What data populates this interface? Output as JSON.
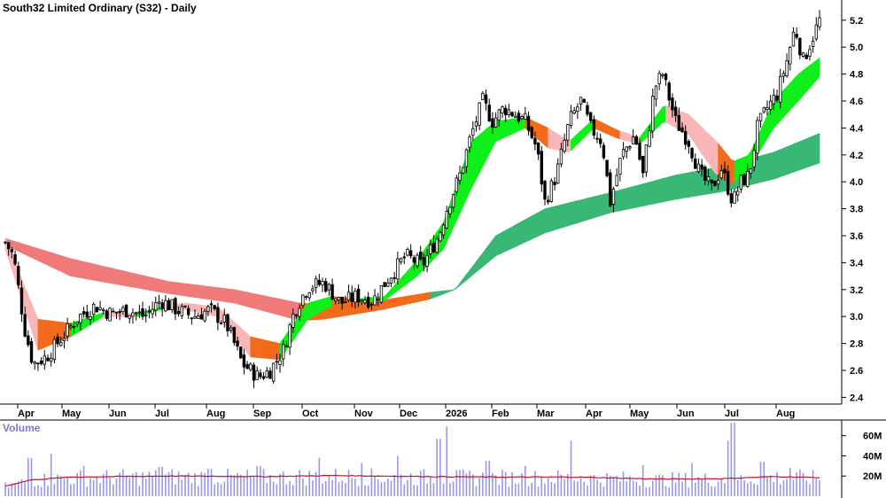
{
  "chart_data": [
    {
      "type": "candlestick",
      "title": "South32 Limited Ordinary (S32) - Daily",
      "y_axis_side": "right",
      "ylim": [
        2.35,
        5.35
      ],
      "y_ticks": [
        2.4,
        2.6,
        2.8,
        3.0,
        3.2,
        3.4,
        3.6,
        3.8,
        4.0,
        4.2,
        4.4,
        4.6,
        4.8,
        5.0,
        5.2
      ],
      "y_tick_labels": [
        "2.4",
        "2.6",
        "2.8",
        "3.0",
        "3.2",
        "3.4",
        "3.6",
        "3.8",
        "4.0",
        "4.2",
        "4.4",
        "4.6",
        "4.8",
        "5.0",
        "5.2"
      ],
      "x_labels": [
        "Apr",
        "May",
        "Jun",
        "Jul",
        "Aug",
        "Sep",
        "Oct",
        "Nov",
        "Dec",
        "2026",
        "Feb",
        "Mar",
        "Apr",
        "May",
        "Jun",
        "Jul",
        "Aug"
      ],
      "grid": false,
      "price_path": [
        {
          "d": 0,
          "close": 3.55
        },
        {
          "d": 5,
          "close": 3.45
        },
        {
          "d": 12,
          "close": 2.9
        },
        {
          "d": 17,
          "close": 2.65
        },
        {
          "d": 25,
          "close": 2.7
        },
        {
          "d": 35,
          "close": 2.85
        },
        {
          "d": 45,
          "close": 3.0
        },
        {
          "d": 55,
          "close": 3.08
        },
        {
          "d": 65,
          "close": 3.02
        },
        {
          "d": 75,
          "close": 3.05
        },
        {
          "d": 85,
          "close": 3.0
        },
        {
          "d": 95,
          "close": 3.12
        },
        {
          "d": 105,
          "close": 3.05
        },
        {
          "d": 115,
          "close": 3.0
        },
        {
          "d": 125,
          "close": 3.05
        },
        {
          "d": 135,
          "close": 2.95
        },
        {
          "d": 145,
          "close": 2.65
        },
        {
          "d": 155,
          "close": 2.55
        },
        {
          "d": 162,
          "close": 2.6
        },
        {
          "d": 170,
          "close": 2.75
        },
        {
          "d": 177,
          "close": 3.05
        },
        {
          "d": 185,
          "close": 3.22
        },
        {
          "d": 195,
          "close": 3.25
        },
        {
          "d": 205,
          "close": 3.1
        },
        {
          "d": 215,
          "close": 3.15
        },
        {
          "d": 225,
          "close": 3.12
        },
        {
          "d": 235,
          "close": 3.3
        },
        {
          "d": 245,
          "close": 3.45
        },
        {
          "d": 255,
          "close": 3.38
        },
        {
          "d": 265,
          "close": 3.6
        },
        {
          "d": 270,
          "close": 3.8
        },
        {
          "d": 278,
          "close": 4.05
        },
        {
          "d": 285,
          "close": 4.35
        },
        {
          "d": 292,
          "close": 4.6
        },
        {
          "d": 298,
          "close": 4.45
        },
        {
          "d": 305,
          "close": 4.55
        },
        {
          "d": 312,
          "close": 4.5
        },
        {
          "d": 318,
          "close": 4.45
        },
        {
          "d": 325,
          "close": 4.25
        },
        {
          "d": 330,
          "close": 3.85
        },
        {
          "d": 337,
          "close": 4.05
        },
        {
          "d": 345,
          "close": 4.45
        },
        {
          "d": 352,
          "close": 4.6
        },
        {
          "d": 358,
          "close": 4.4
        },
        {
          "d": 365,
          "close": 4.3
        },
        {
          "d": 370,
          "close": 3.85
        },
        {
          "d": 377,
          "close": 4.2
        },
        {
          "d": 385,
          "close": 4.35
        },
        {
          "d": 390,
          "close": 4.05
        },
        {
          "d": 397,
          "close": 4.7
        },
        {
          "d": 402,
          "close": 4.8
        },
        {
          "d": 410,
          "close": 4.45
        },
        {
          "d": 418,
          "close": 4.3
        },
        {
          "d": 425,
          "close": 4.05
        },
        {
          "d": 432,
          "close": 3.95
        },
        {
          "d": 438,
          "close": 4.1
        },
        {
          "d": 445,
          "close": 3.85
        },
        {
          "d": 450,
          "close": 4.0
        },
        {
          "d": 455,
          "close": 4.05
        },
        {
          "d": 460,
          "close": 4.4
        },
        {
          "d": 466,
          "close": 4.55
        },
        {
          "d": 472,
          "close": 4.65
        },
        {
          "d": 478,
          "close": 4.9
        },
        {
          "d": 483,
          "close": 5.15
        },
        {
          "d": 488,
          "close": 4.9
        },
        {
          "d": 493,
          "close": 5.05
        },
        {
          "d": 498,
          "close": 5.2
        }
      ],
      "mma_short_band": [
        {
          "d": 0,
          "lo": 3.5,
          "hi": 3.58,
          "trend": "pink"
        },
        {
          "d": 20,
          "lo": 2.75,
          "hi": 2.98,
          "trend": "pink"
        },
        {
          "d": 40,
          "lo": 2.85,
          "hi": 2.95,
          "trend": "orange"
        },
        {
          "d": 60,
          "lo": 3.0,
          "hi": 3.03,
          "trend": "green"
        },
        {
          "d": 80,
          "lo": 3.0,
          "hi": 3.02,
          "trend": "pink"
        },
        {
          "d": 95,
          "lo": 3.05,
          "hi": 3.07,
          "trend": "green"
        },
        {
          "d": 110,
          "lo": 3.05,
          "hi": 3.1,
          "trend": "pink"
        },
        {
          "d": 130,
          "lo": 3.0,
          "hi": 3.07,
          "trend": "pink"
        },
        {
          "d": 150,
          "lo": 2.7,
          "hi": 2.85,
          "trend": "pink"
        },
        {
          "d": 168,
          "lo": 2.68,
          "hi": 2.8,
          "trend": "orange"
        },
        {
          "d": 185,
          "lo": 2.98,
          "hi": 3.1,
          "trend": "green"
        },
        {
          "d": 200,
          "lo": 3.08,
          "hi": 3.15,
          "trend": "green"
        },
        {
          "d": 215,
          "lo": 3.1,
          "hi": 3.13,
          "trend": "orange"
        },
        {
          "d": 232,
          "lo": 3.12,
          "hi": 3.15,
          "trend": "green"
        },
        {
          "d": 252,
          "lo": 3.3,
          "hi": 3.42,
          "trend": "green"
        },
        {
          "d": 268,
          "lo": 3.5,
          "hi": 3.7,
          "trend": "green"
        },
        {
          "d": 285,
          "lo": 3.95,
          "hi": 4.3,
          "trend": "green"
        },
        {
          "d": 300,
          "lo": 4.3,
          "hi": 4.45,
          "trend": "green"
        },
        {
          "d": 318,
          "lo": 4.4,
          "hi": 4.48,
          "trend": "green"
        },
        {
          "d": 332,
          "lo": 4.25,
          "hi": 4.4,
          "trend": "orange"
        },
        {
          "d": 345,
          "lo": 4.22,
          "hi": 4.3,
          "trend": "pink"
        },
        {
          "d": 360,
          "lo": 4.4,
          "hi": 4.47,
          "trend": "green"
        },
        {
          "d": 375,
          "lo": 4.32,
          "hi": 4.38,
          "trend": "orange"
        },
        {
          "d": 388,
          "lo": 4.28,
          "hi": 4.33,
          "trend": "pink"
        },
        {
          "d": 403,
          "lo": 4.45,
          "hi": 4.57,
          "trend": "green"
        },
        {
          "d": 418,
          "lo": 4.35,
          "hi": 4.5,
          "trend": "pink"
        },
        {
          "d": 435,
          "lo": 4.05,
          "hi": 4.3,
          "trend": "pink"
        },
        {
          "d": 445,
          "lo": 3.98,
          "hi": 4.15,
          "trend": "orange"
        },
        {
          "d": 455,
          "lo": 4.1,
          "hi": 4.2,
          "trend": "green"
        },
        {
          "d": 470,
          "lo": 4.4,
          "hi": 4.6,
          "trend": "green"
        },
        {
          "d": 485,
          "lo": 4.6,
          "hi": 4.8,
          "trend": "green"
        },
        {
          "d": 498,
          "lo": 4.78,
          "hi": 4.92,
          "trend": "green"
        }
      ],
      "mma_long_band": [
        {
          "d": 0,
          "lo": 3.53,
          "hi": 3.58,
          "trend": "red"
        },
        {
          "d": 40,
          "lo": 3.3,
          "hi": 3.43,
          "trend": "red"
        },
        {
          "d": 100,
          "lo": 3.17,
          "hi": 3.26,
          "trend": "red"
        },
        {
          "d": 140,
          "lo": 3.1,
          "hi": 3.2,
          "trend": "red"
        },
        {
          "d": 180,
          "lo": 2.97,
          "hi": 3.1,
          "trend": "red"
        },
        {
          "d": 195,
          "lo": 2.98,
          "hi": 3.09,
          "trend": "orange"
        },
        {
          "d": 230,
          "lo": 3.05,
          "hi": 3.12,
          "trend": "orange"
        },
        {
          "d": 260,
          "lo": 3.13,
          "hi": 3.18,
          "trend": "orange"
        },
        {
          "d": 275,
          "lo": 3.2,
          "hi": 3.2,
          "trend": "green"
        },
        {
          "d": 300,
          "lo": 3.45,
          "hi": 3.6,
          "trend": "green"
        },
        {
          "d": 330,
          "lo": 3.62,
          "hi": 3.8,
          "trend": "green"
        },
        {
          "d": 370,
          "lo": 3.77,
          "hi": 3.92,
          "trend": "green"
        },
        {
          "d": 410,
          "lo": 3.87,
          "hi": 4.05,
          "trend": "green"
        },
        {
          "d": 440,
          "lo": 3.93,
          "hi": 4.12,
          "trend": "green"
        },
        {
          "d": 470,
          "lo": 4.02,
          "hi": 4.22,
          "trend": "green"
        },
        {
          "d": 498,
          "lo": 4.14,
          "hi": 4.36,
          "trend": "green"
        }
      ],
      "colors": {
        "candle": "#000000",
        "short_green": "#0fef1a",
        "short_pink": "#f9b6b6",
        "short_orange": "#f26b1d",
        "long_red": "#f07a7a",
        "long_orange": "#f26b1d",
        "long_green": "#39b775"
      }
    },
    {
      "type": "bar",
      "title": "Volume",
      "ylim": [
        0,
        72000000
      ],
      "y_ticks": [
        20000000,
        40000000,
        60000000
      ],
      "y_tick_labels": [
        "20M",
        "40M",
        "60M"
      ],
      "volume_spikes": [
        {
          "d": 15,
          "v": 38000000
        },
        {
          "d": 28,
          "v": 42000000
        },
        {
          "d": 48,
          "v": 30000000
        },
        {
          "d": 95,
          "v": 29000000
        },
        {
          "d": 125,
          "v": 27000000
        },
        {
          "d": 155,
          "v": 30000000
        },
        {
          "d": 192,
          "v": 38000000
        },
        {
          "d": 218,
          "v": 33000000
        },
        {
          "d": 240,
          "v": 40000000
        },
        {
          "d": 265,
          "v": 57000000
        },
        {
          "d": 270,
          "v": 69000000
        },
        {
          "d": 295,
          "v": 35000000
        },
        {
          "d": 318,
          "v": 30000000
        },
        {
          "d": 346,
          "v": 55000000
        },
        {
          "d": 390,
          "v": 31000000
        },
        {
          "d": 420,
          "v": 33000000
        },
        {
          "d": 442,
          "v": 55000000
        },
        {
          "d": 445,
          "v": 73000000
        },
        {
          "d": 463,
          "v": 34000000
        },
        {
          "d": 480,
          "v": 28000000
        }
      ],
      "ma_path": [
        {
          "d": 0,
          "v": 10000000
        },
        {
          "d": 15,
          "v": 16000000
        },
        {
          "d": 40,
          "v": 19000000
        },
        {
          "d": 100,
          "v": 20000000
        },
        {
          "d": 160,
          "v": 19500000
        },
        {
          "d": 200,
          "v": 20500000
        },
        {
          "d": 260,
          "v": 19500000
        },
        {
          "d": 300,
          "v": 19000000
        },
        {
          "d": 350,
          "v": 19000000
        },
        {
          "d": 400,
          "v": 17000000
        },
        {
          "d": 440,
          "v": 17500000
        },
        {
          "d": 470,
          "v": 19500000
        },
        {
          "d": 498,
          "v": 18500000
        }
      ],
      "colors": {
        "bars": "#9b97e6",
        "ma": "#c8141e",
        "title": "#7d79d8"
      }
    }
  ]
}
